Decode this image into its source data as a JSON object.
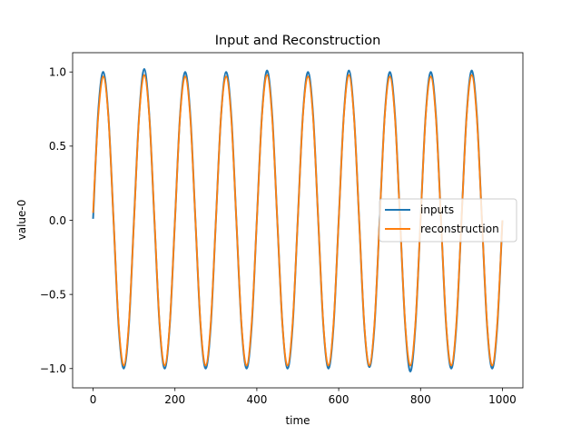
{
  "chart_data": {
    "type": "line",
    "title": "Input and Reconstruction",
    "xlabel": "time",
    "ylabel": "value-0",
    "xlim": [
      -50,
      1050
    ],
    "ylim": [
      -1.13,
      1.13
    ],
    "xticks": [
      0,
      200,
      400,
      600,
      800,
      1000
    ],
    "xtick_labels": [
      "0",
      "200",
      "400",
      "600",
      "800",
      "1000"
    ],
    "yticks": [
      -1.0,
      -0.5,
      0.0,
      0.5,
      1.0
    ],
    "ytick_labels": [
      "−1.0",
      "−0.5",
      "0.0",
      "0.5",
      "1.0"
    ],
    "grid": false,
    "legend_position": "center-right",
    "series": [
      {
        "name": "inputs",
        "color": "#1f77b4",
        "x": [
          0,
          12.5,
          25,
          37.5,
          50,
          62.5,
          75,
          87.5,
          100,
          112.5,
          125,
          137.5,
          150,
          162.5,
          175,
          187.5,
          200,
          212.5,
          225,
          237.5,
          250,
          262.5,
          275,
          287.5,
          300,
          312.5,
          325,
          337.5,
          350,
          362.5,
          375,
          387.5,
          400,
          412.5,
          425,
          437.5,
          450,
          462.5,
          475,
          487.5,
          500,
          512.5,
          525,
          537.5,
          550,
          562.5,
          575,
          587.5,
          600,
          612.5,
          625,
          637.5,
          650,
          662.5,
          675,
          687.5,
          700,
          712.5,
          725,
          737.5,
          750,
          762.5,
          775,
          787.5,
          800,
          812.5,
          825,
          837.5,
          850,
          862.5,
          875,
          887.5,
          900,
          912.5,
          925,
          937.5,
          950,
          962.5,
          975,
          987.5,
          1000
        ],
        "values": [
          0.01,
          0.73,
          1.0,
          0.7,
          0.0,
          -0.72,
          -1.0,
          -0.71,
          0.01,
          0.71,
          1.02,
          0.7,
          -0.01,
          -0.71,
          -1.0,
          -0.7,
          0.0,
          0.71,
          1.0,
          0.71,
          0.0,
          -0.71,
          -1.0,
          -0.71,
          0.0,
          0.7,
          1.0,
          0.71,
          0.0,
          -0.71,
          -1.0,
          -0.71,
          0.0,
          0.71,
          1.01,
          0.71,
          0.0,
          -0.7,
          -1.0,
          -0.71,
          0.0,
          0.71,
          1.0,
          0.71,
          0.0,
          -0.71,
          -1.0,
          -0.71,
          0.0,
          0.71,
          1.01,
          0.7,
          0.0,
          -0.71,
          -0.99,
          -0.71,
          0.0,
          0.71,
          1.0,
          0.71,
          0.0,
          -0.71,
          -1.02,
          -0.71,
          0.0,
          0.71,
          1.0,
          0.71,
          0.0,
          -0.71,
          -1.0,
          -0.71,
          0.0,
          0.71,
          1.01,
          0.71,
          0.0,
          -0.71,
          -1.0,
          -0.71,
          0.0
        ]
      },
      {
        "name": "reconstruction",
        "color": "#ff7f0e",
        "x": [
          0,
          12.5,
          25,
          37.5,
          50,
          62.5,
          75,
          87.5,
          100,
          112.5,
          125,
          137.5,
          150,
          162.5,
          175,
          187.5,
          200,
          212.5,
          225,
          237.5,
          250,
          262.5,
          275,
          287.5,
          300,
          312.5,
          325,
          337.5,
          350,
          362.5,
          375,
          387.5,
          400,
          412.5,
          425,
          437.5,
          450,
          462.5,
          475,
          487.5,
          500,
          512.5,
          525,
          537.5,
          550,
          562.5,
          575,
          587.5,
          600,
          612.5,
          625,
          637.5,
          650,
          662.5,
          675,
          687.5,
          700,
          712.5,
          725,
          737.5,
          750,
          762.5,
          775,
          787.5,
          800,
          812.5,
          825,
          837.5,
          850,
          862.5,
          875,
          887.5,
          900,
          912.5,
          925,
          937.5,
          950,
          962.5,
          975,
          987.5,
          1000
        ],
        "values": [
          0.05,
          0.7,
          0.97,
          0.69,
          0.0,
          -0.7,
          -0.98,
          -0.69,
          0.0,
          0.7,
          0.98,
          0.69,
          0.0,
          -0.7,
          -0.98,
          -0.69,
          0.0,
          0.7,
          0.97,
          0.69,
          0.0,
          -0.7,
          -0.98,
          -0.69,
          0.0,
          0.7,
          0.97,
          0.69,
          0.0,
          -0.7,
          -0.98,
          -0.69,
          0.0,
          0.7,
          0.98,
          0.69,
          0.0,
          -0.7,
          -0.98,
          -0.69,
          0.0,
          0.7,
          0.97,
          0.69,
          0.0,
          -0.7,
          -0.98,
          -0.69,
          0.0,
          0.7,
          0.98,
          0.69,
          0.0,
          -0.7,
          -0.98,
          -0.69,
          0.0,
          0.7,
          0.97,
          0.69,
          0.0,
          -0.7,
          -0.98,
          -0.69,
          0.0,
          0.7,
          0.97,
          0.69,
          0.0,
          -0.7,
          -0.98,
          -0.69,
          0.0,
          0.7,
          0.98,
          0.69,
          0.0,
          -0.7,
          -0.98,
          -0.69,
          0.0
        ]
      }
    ]
  }
}
